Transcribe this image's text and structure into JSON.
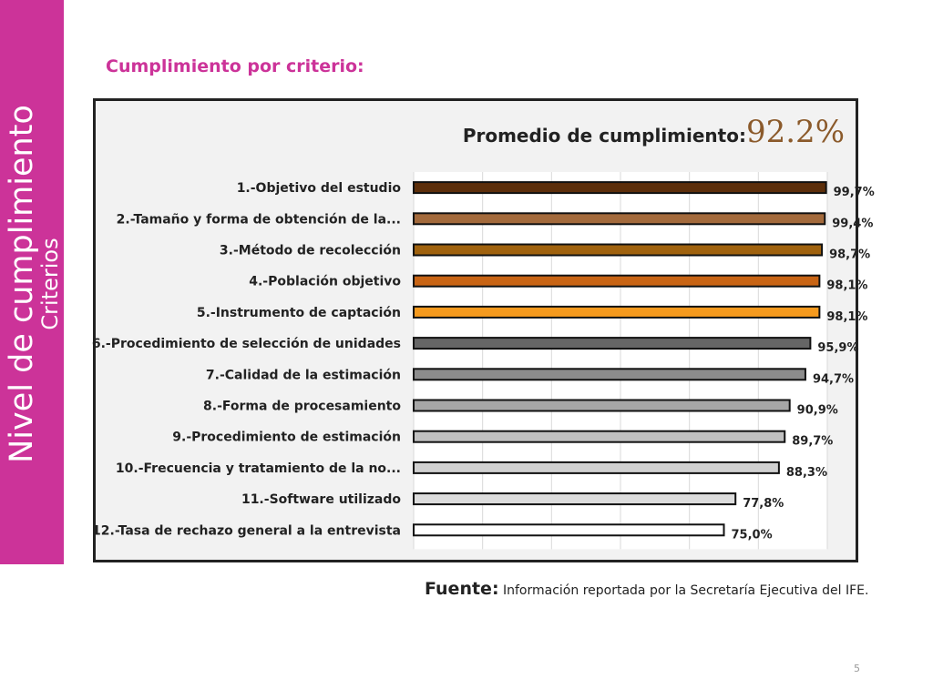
{
  "sidebar": {
    "title": "Nivel de cumplimiento",
    "subtitle": "Criterios"
  },
  "section_title": "Cumplimiento por criterio:",
  "chart_header": {
    "label": "Promedio de cumplimiento:",
    "value": "92.2%"
  },
  "source": {
    "label": "Fuente:",
    "text": "Información reportada por la Secretaría Ejecutiva del IFE."
  },
  "page_number": "5",
  "colors": {
    "accent": "#cc3399",
    "chart_bg": "#f2f2f2"
  },
  "chart_data": {
    "type": "bar",
    "orientation": "horizontal",
    "title": "Promedio de cumplimiento: 92.2%",
    "xlim": [
      0,
      100
    ],
    "grid": true,
    "categories": [
      "1.-Objetivo del estudio",
      "2.-Tamaño y forma de obtención de la...",
      "3.-Método de recolección",
      "4.-Población objetivo",
      "5.-Instrumento de captación",
      "6.-Procedimiento de selección de unidades",
      "7.-Calidad de la estimación",
      "8.-Forma de procesamiento",
      "9.-Procedimiento de estimación",
      "10.-Frecuencia y tratamiento de la no...",
      "11.-Software utilizado",
      "12.-Tasa de rechazo general a la entrevista"
    ],
    "values": [
      99.7,
      99.4,
      98.7,
      98.1,
      98.1,
      95.9,
      94.7,
      90.9,
      89.7,
      88.3,
      77.8,
      75.0
    ],
    "value_labels": [
      "99,7%",
      "99,4%",
      "98,7%",
      "98,1%",
      "98,1%",
      "95,9%",
      "94,7%",
      "90,9%",
      "89,7%",
      "88,3%",
      "77,8%",
      "75,0%"
    ],
    "bar_colors": [
      "#5c2e0a",
      "#a36a3c",
      "#a0620e",
      "#c86414",
      "#f59a1e",
      "#666666",
      "#8c8c8c",
      "#a6a6a6",
      "#c0c0c0",
      "#d0d0d0",
      "#dcdcdc",
      "#ffffff"
    ]
  }
}
